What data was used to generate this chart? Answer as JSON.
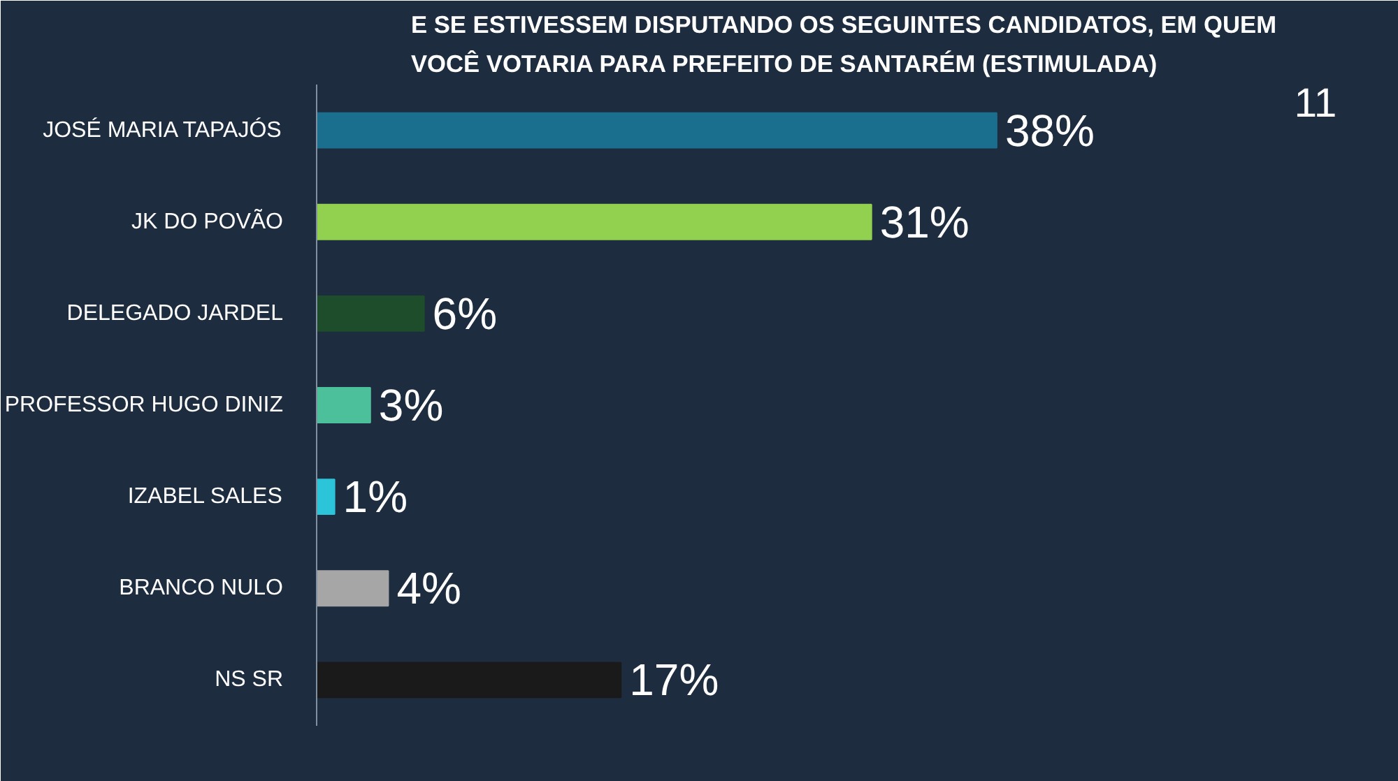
{
  "chart_data": {
    "type": "bar",
    "orientation": "horizontal",
    "title": "E SE ESTIVESSEM DISPUTANDO OS SEGUINTES CANDIDATOS, EM QUEM VOCÊ VOTARIA PARA PREFEITO DE SANTARÉM (ESTIMULADA)",
    "categories": [
      "JOSÉ MARIA TAPAJÓS",
      "JK DO POVÃO",
      "DELEGADO JARDEL",
      "PROFESSOR HUGO DINIZ",
      "IZABEL SALES",
      "BRANCO NULO",
      "NS SR"
    ],
    "values": [
      38,
      31,
      6,
      3,
      1,
      4,
      17
    ],
    "colors": [
      "#1a6e8e",
      "#92d050",
      "#1e4d2b",
      "#4cc09a",
      "#2bc4d8",
      "#a6a6a6",
      "#1a1a1a"
    ],
    "value_labels": [
      "38%",
      "31%",
      "6%",
      "3%",
      "1%",
      "4%",
      "17%"
    ],
    "annotations": [
      "11"
    ],
    "grid": false
  }
}
